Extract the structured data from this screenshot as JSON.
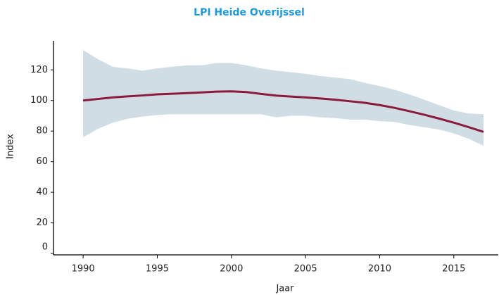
{
  "chart_data": {
    "type": "line",
    "title": "LPI Heide Overijssel",
    "x_label": "Jaar",
    "y_label": "Index",
    "x": [
      1990,
      1991,
      1992,
      1993,
      1994,
      1995,
      1996,
      1997,
      1998,
      1999,
      2000,
      2001,
      2002,
      2003,
      2004,
      2005,
      2006,
      2007,
      2008,
      2009,
      2010,
      2011,
      2012,
      2013,
      2014,
      2015,
      2016,
      2017
    ],
    "series": [
      {
        "color": "#8b1a3c",
        "values": [
          100,
          101,
          102,
          102.7,
          103.3,
          104,
          104.4,
          104.8,
          105.3,
          105.8,
          106,
          105.5,
          104.3,
          103.2,
          102.6,
          102,
          101.3,
          100.5,
          99.5,
          98.5,
          97,
          95.2,
          93,
          90.7,
          88.2,
          85.5,
          82.6,
          79.5
        ]
      }
    ],
    "band": {
      "color": "#d0dde5",
      "upper": [
        133,
        127,
        122,
        121,
        119.5,
        121,
        122,
        123,
        123,
        124.5,
        124.5,
        123,
        121,
        119.5,
        118.5,
        117.5,
        116,
        115,
        114,
        111.5,
        109.5,
        107,
        104,
        100.5,
        97,
        93.5,
        91.5,
        91
      ],
      "lower": [
        76,
        81.5,
        85.5,
        88,
        89.5,
        90.5,
        91,
        91,
        91,
        91,
        91,
        91,
        91,
        89,
        90,
        90,
        89,
        88.5,
        87.5,
        87.5,
        86.5,
        86,
        84,
        82.5,
        81,
        78.5,
        75,
        70.5
      ]
    },
    "xlim": [
      1988,
      2018
    ],
    "xticks": [
      1990,
      1995,
      2000,
      2005,
      2010,
      2015
    ],
    "ylim": [
      0,
      139
    ],
    "yticks": [
      0,
      20,
      40,
      60,
      80,
      100,
      120
    ]
  }
}
